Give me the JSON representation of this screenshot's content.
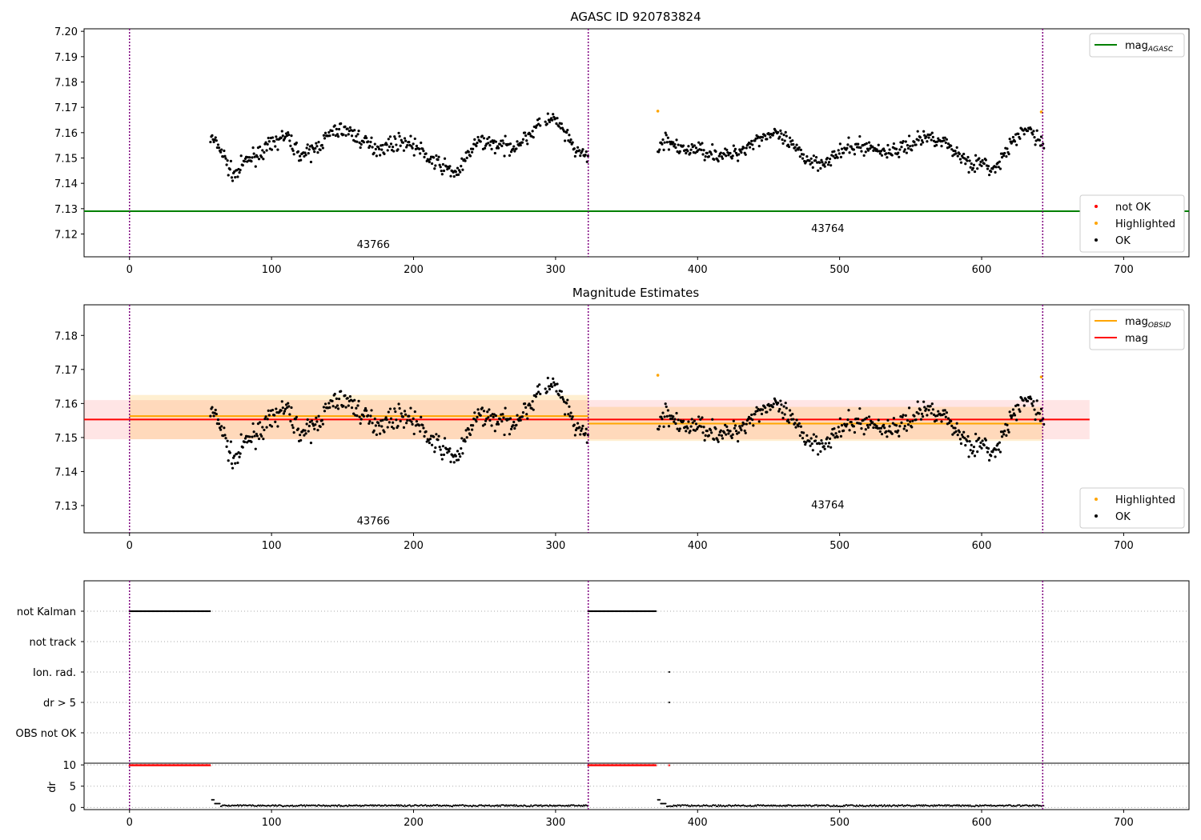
{
  "chart_data": [
    {
      "type": "scatter",
      "title": "AGASC ID 920783824",
      "xlim": [
        -32,
        746
      ],
      "ylim": [
        7.111,
        7.201
      ],
      "xticks": [
        0,
        100,
        200,
        300,
        400,
        500,
        600,
        700
      ],
      "yticks": [
        7.12,
        7.13,
        7.14,
        7.15,
        7.16,
        7.17,
        7.18,
        7.19,
        7.2
      ],
      "ytick_labels": [
        "7.12",
        "7.13",
        "7.14",
        "7.15",
        "7.16",
        "7.17",
        "7.18",
        "7.19",
        "7.20"
      ],
      "vlines": [
        0,
        323,
        643
      ],
      "obsid_labels": [
        {
          "x": 160,
          "y": 7.1145,
          "text": "43766"
        },
        {
          "x": 480,
          "y": 7.1208,
          "text": "43764"
        }
      ],
      "mag_agasc": 7.129,
      "legend_top": [
        {
          "name": "mag",
          "sub": "AGASC",
          "color": "#008000"
        }
      ],
      "legend_bottom": [
        {
          "name": "not OK",
          "color": "#ff0000"
        },
        {
          "name": "Highlighted",
          "color": "#ffa500"
        },
        {
          "name": "OK",
          "color": "#000000"
        }
      ],
      "highlighted_points": [
        [
          372,
          7.1685
        ],
        [
          642,
          7.1682
        ]
      ]
    },
    {
      "type": "scatter",
      "title": "Magnitude Estimates",
      "xlim": [
        -32,
        746
      ],
      "ylim": [
        7.122,
        7.189
      ],
      "xticks": [
        0,
        100,
        200,
        300,
        400,
        500,
        600,
        700
      ],
      "yticks": [
        7.13,
        7.14,
        7.15,
        7.16,
        7.17,
        7.18
      ],
      "ytick_labels": [
        "7.13",
        "7.14",
        "7.15",
        "7.16",
        "7.17",
        "7.18"
      ],
      "vlines": [
        0,
        323,
        643
      ],
      "obsid_labels": [
        {
          "x": 160,
          "y": 7.1245,
          "text": "43766"
        },
        {
          "x": 480,
          "y": 7.1292,
          "text": "43764"
        }
      ],
      "mag": 7.1553,
      "mag_band": [
        7.1495,
        7.161
      ],
      "mag_band_xrange": [
        -32,
        676
      ],
      "mag_obsid": [
        {
          "x0": 0,
          "x1": 323,
          "value": 7.1563,
          "band": [
            7.1495,
            7.1625
          ]
        },
        {
          "x0": 323,
          "x1": 643,
          "value": 7.1541,
          "band": [
            7.149,
            7.159
          ]
        }
      ],
      "legend_top": [
        {
          "name": "mag",
          "sub": "OBSID",
          "color": "#ffa500"
        },
        {
          "name": "mag",
          "sub": "",
          "color": "#ff0000"
        }
      ],
      "legend_bottom": [
        {
          "name": "Highlighted",
          "color": "#ffa500"
        },
        {
          "name": "OK",
          "color": "#000000"
        }
      ],
      "highlighted_points": [
        [
          372,
          7.1683
        ],
        [
          642,
          7.1678
        ]
      ]
    },
    {
      "type": "scatter",
      "xlim": [
        -32,
        746
      ],
      "xticks": [
        0,
        100,
        200,
        300,
        400,
        500,
        600,
        700
      ],
      "flag_rows": [
        "not Kalman",
        "not track",
        "Ion. rad.",
        "dr > 5",
        "OBS not OK"
      ],
      "flag_segments": [
        {
          "row": "not Kalman",
          "x0": 0,
          "x1": 57
        },
        {
          "row": "not Kalman",
          "x0": 323,
          "x1": 371
        }
      ],
      "flag_points": [
        {
          "row": "Ion. rad.",
          "x": 380
        },
        {
          "row": "dr > 5",
          "x": 380
        }
      ],
      "dr_ylabel": "dr",
      "dr_ylim": [
        -0.5,
        10.4
      ],
      "dr_yticks": [
        0,
        5,
        10
      ],
      "dr_clipped_segments": [
        {
          "x0": 0,
          "x1": 57,
          "value": 10
        },
        {
          "x0": 323,
          "x1": 371,
          "value": 10
        }
      ],
      "dr_clipped_points": [
        380
      ],
      "vlines": [
        0,
        323,
        643
      ]
    }
  ]
}
